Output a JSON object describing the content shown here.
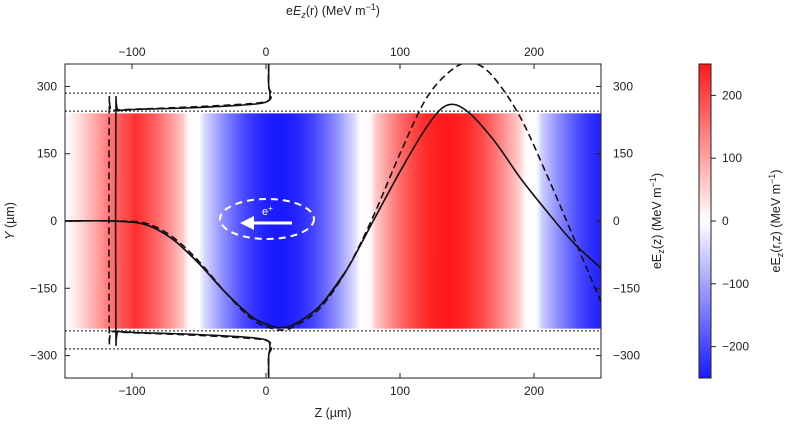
{
  "chart_data": {
    "type": "heatmap",
    "axes": {
      "bottom": {
        "label": "Z (µm)",
        "range": [
          -150,
          250
        ],
        "ticks": [
          -100,
          0,
          100,
          200
        ],
        "tick_labels": [
          "−100",
          "0",
          "100",
          "200"
        ]
      },
      "left": {
        "label": "Y (µm)",
        "label_italic": "Y",
        "label_rest": " (µm)",
        "range": [
          -350,
          350
        ],
        "ticks": [
          300,
          150,
          0,
          -150,
          -300
        ],
        "tick_labels": [
          "300",
          "150",
          "0",
          "−150",
          "−300"
        ]
      },
      "top": {
        "label": "eEz(r) (MeV m−1)",
        "label_pre": "e",
        "label_italic": "E",
        "label_sub": "z",
        "label_post": "(r) (MeV m",
        "label_sup": "−1",
        "label_close": ")",
        "range": [
          -150,
          250
        ],
        "ticks": [
          -100,
          0,
          100,
          200
        ],
        "tick_labels": [
          "−100",
          "0",
          "100",
          "200"
        ]
      },
      "right": {
        "label": "eEz(z) (MeV m−1)",
        "label_pre": "eE",
        "label_sub": "z",
        "label_post": "(z) (MeV m",
        "label_sup": "−1",
        "label_close": ")",
        "range": [
          -350,
          350
        ],
        "ticks": [
          300,
          150,
          0,
          -150,
          -300
        ],
        "tick_labels": [
          "300",
          "150",
          "0",
          "−150",
          "−300"
        ]
      }
    },
    "colorbar": {
      "label": "eEz(r,z) (MeV m−1)",
      "label_pre": "eE",
      "label_sub": "z",
      "label_post": "(r,z) (MeV m",
      "label_sup": "−1",
      "label_close": ")",
      "range": [
        -250,
        250
      ],
      "ticks": [
        200,
        100,
        0,
        -100,
        -200
      ],
      "tick_labels": [
        "200",
        "100",
        "0",
        "−100",
        "−200"
      ],
      "colors": {
        "low": "#1a1aff",
        "mid": "#ffffff",
        "high": "#ff1a1a"
      }
    },
    "field_map": {
      "z_start": -150,
      "z_end": 250,
      "y_min": -240,
      "y_max": 240,
      "amplitude": 250,
      "min_at_z": 10,
      "period": 250,
      "zero_span": 12
    },
    "boundaries_y": [
      285,
      245,
      -245,
      -285
    ],
    "series": [
      {
        "name": "Ez(z) on-axis (solid)",
        "style": "solid",
        "axes": "bottom-right",
        "x": [
          -150,
          -115,
          -90,
          -70,
          -50,
          -30,
          -10,
          5,
          10,
          20,
          40,
          60,
          80,
          100,
          120,
          135,
          150,
          170,
          190,
          210,
          230,
          250
        ],
        "y": [
          0,
          0,
          -8,
          -40,
          -95,
          -160,
          -215,
          -235,
          -238,
          -232,
          -190,
          -110,
          0,
          110,
          210,
          258,
          245,
          180,
          95,
          20,
          -50,
          -105
        ]
      },
      {
        "name": "Ez(z) on-axis (dashed)",
        "style": "dashed",
        "axes": "bottom-right",
        "x": [
          -150,
          -115,
          -90,
          -70,
          -50,
          -30,
          -10,
          5,
          10,
          20,
          40,
          60,
          80,
          100,
          120,
          140,
          155,
          170,
          190,
          210,
          230,
          250
        ],
        "y": [
          0,
          0,
          -5,
          -35,
          -90,
          -160,
          -220,
          -240,
          -243,
          -237,
          -195,
          -110,
          10,
          150,
          275,
          340,
          352,
          320,
          230,
          100,
          -40,
          -180
        ]
      },
      {
        "name": "Ez(r) radial (solid)",
        "style": "solid",
        "axes": "top-left",
        "x": [
          2,
          2,
          3,
          0,
          -20,
          -60,
          -95,
          -110,
          -112,
          -112,
          -110,
          -95,
          -60,
          -20,
          0,
          3,
          2,
          2
        ],
        "y": [
          350,
          300,
          283,
          265,
          258,
          252,
          249,
          246,
          240,
          -240,
          -246,
          -249,
          -252,
          -258,
          -265,
          -283,
          -300,
          -350
        ]
      },
      {
        "name": "Ez(r) radial (dashed)",
        "style": "dashed",
        "axes": "top-left",
        "x": [
          2,
          2,
          4,
          0,
          -25,
          -65,
          -100,
          -115,
          -117,
          -117,
          -115,
          -100,
          -65,
          -25,
          0,
          4,
          2,
          2
        ],
        "y": [
          350,
          300,
          283,
          266,
          259,
          253,
          249,
          246,
          240,
          -240,
          -246,
          -249,
          -253,
          -259,
          -266,
          -283,
          -300,
          -350
        ]
      },
      {
        "name": "Ez(r) tail (solid)",
        "style": "solid",
        "axes": "bottom-left",
        "x": [
          -150,
          -115,
          -90,
          -70,
          -50,
          -30,
          -10,
          5,
          10,
          20,
          40,
          60
        ],
        "y": [
          0,
          0,
          -8,
          -40,
          -95,
          -160,
          -215,
          -235,
          -238,
          -232,
          -190,
          -110
        ]
      }
    ],
    "annotations": [
      {
        "text": "e+",
        "text_base": "e",
        "text_sup": "+",
        "type": "particle",
        "center": [
          -10,
          0
        ],
        "direction": "left"
      }
    ]
  }
}
